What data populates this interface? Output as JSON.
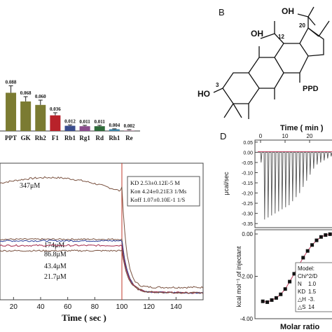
{
  "panel_labels": {
    "B": "B",
    "D": "D"
  },
  "structure": {
    "name": "PPD",
    "labels": [
      "HO",
      "OH",
      "OH",
      "3",
      "12",
      "20"
    ]
  },
  "chart_data": [
    {
      "type": "bar",
      "categories": [
        "PPT",
        "GK",
        "Rh2",
        "F1",
        "Rb1",
        "Rg1",
        "Rd",
        "Rh1",
        "Re"
      ],
      "values": [
        0.088,
        0.068,
        0.06,
        0.036,
        0.012,
        0.011,
        0.011,
        0.004,
        0.002
      ],
      "value_labels": [
        "0.088",
        "0.068",
        "0.060",
        "0.036",
        "0.012",
        "0.011",
        "0.011",
        "0.004",
        "0.002"
      ],
      "errors": [
        0.016,
        0.011,
        0.011,
        0.006,
        0.002,
        0.002,
        0.002,
        0.001,
        0.001
      ],
      "colors": [
        "#7b7b32",
        "#7b7b32",
        "#7b7b32",
        "#b8222a",
        "#3a4c8c",
        "#8a4b8c",
        "#2f6b3a",
        "#3a84a8",
        "#c7a8b9"
      ],
      "ylim": [
        0,
        0.1
      ]
    },
    {
      "type": "line",
      "xlabel": "Time ( sec )",
      "xticks": [
        20,
        40,
        60,
        80,
        100,
        120,
        140
      ],
      "xlim": [
        10,
        160
      ],
      "dissociation_start": 100,
      "annotation": [
        "KD  2.53±0.12E-5 M",
        "Kon  4.24±0.21E3 1/Ms",
        "Koff  1.07±0.10E-1 1/S"
      ],
      "series": [
        {
          "name": "347μM",
          "color": "#7a5240",
          "plateau": 347
        },
        {
          "name": "174μM",
          "color": "#7a5240",
          "plateau": 175
        },
        {
          "name": "86.8μM",
          "color": "#2a3f9a",
          "plateau": 170
        },
        {
          "name": "43.4μM",
          "color": "#a3284a",
          "plateau": 155
        },
        {
          "name": "21.7μM",
          "color": "#7a5240",
          "plateau": 138
        }
      ],
      "ylim": [
        -20,
        420
      ]
    },
    {
      "type": "line",
      "title": "Time ( min )",
      "xticks_top": [
        0,
        10,
        20
      ],
      "ylabel": "μcal/sec",
      "yticks": [
        "0.05",
        "0.00",
        "-0.05",
        "-0.10",
        "-0.15",
        "-0.20",
        "-0.25",
        "-0.30",
        "-0.35"
      ],
      "ylim": [
        -0.37,
        0.06
      ],
      "peaks": [
        -0.05,
        -0.33,
        -0.32,
        -0.31,
        -0.3,
        -0.29,
        -0.28,
        -0.27,
        -0.26,
        -0.24,
        -0.22,
        -0.2,
        -0.17,
        -0.14,
        -0.11,
        -0.08,
        -0.06,
        -0.05,
        -0.04,
        -0.03,
        -0.02
      ]
    },
    {
      "type": "scatter",
      "xlabel": "Molar ratio",
      "ylabel": "kcal mol⁻¹ of injectant",
      "yticks": [
        "0.00",
        "-2.00",
        "-4.00"
      ],
      "ylim": [
        -4.0,
        0.2
      ],
      "points": [
        [
          0.05,
          -3.18
        ],
        [
          0.15,
          -3.22
        ],
        [
          0.25,
          -3.12
        ],
        [
          0.35,
          -3.02
        ],
        [
          0.45,
          -2.85
        ],
        [
          0.55,
          -2.6
        ],
        [
          0.65,
          -2.25
        ],
        [
          0.75,
          -1.88
        ],
        [
          0.85,
          -1.5
        ],
        [
          0.95,
          -1.12
        ],
        [
          1.05,
          -0.8
        ],
        [
          1.15,
          -0.52
        ],
        [
          1.25,
          -0.3
        ],
        [
          1.35,
          -0.14
        ],
        [
          1.45,
          -0.05
        ],
        [
          1.55,
          -0.01
        ],
        [
          1.65,
          0.0
        ]
      ],
      "model_box": [
        "Model:",
        "Chi^2/D",
        "N",
        "1.0",
        "KD",
        "1.5",
        "△H",
        "-3.",
        "△S",
        "14"
      ]
    }
  ]
}
